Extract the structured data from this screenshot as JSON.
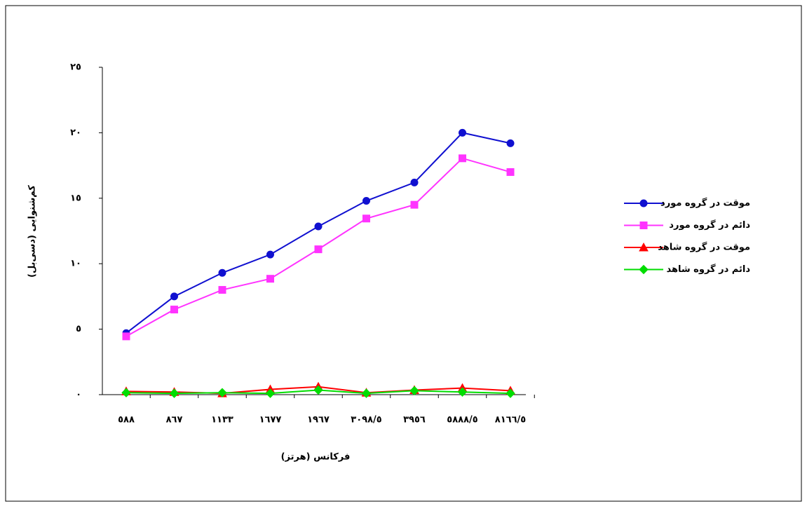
{
  "chart_data": {
    "type": "line",
    "x_label": "فرکانس (هرتز)",
    "y_label": "کم‌شنوایی (دسی‌بل)",
    "categories": [
      "٥٨٨",
      "٨٦٧",
      "١١٣٣",
      "١٦٧٧",
      "١٩٦٧",
      "٣٠٩٨/٥",
      "٣٩٥٦",
      "٥٨٨٨/٥",
      "٨١٦٦/٥"
    ],
    "series": [
      {
        "name": "موقت در گروه مورد",
        "color": "#1010d0",
        "marker": "circle",
        "values": [
          4.7,
          7.5,
          9.3,
          10.7,
          12.85,
          14.8,
          16.2,
          20.0,
          19.2
        ]
      },
      {
        "name": "دائم در گروه مورد",
        "color": "#ff33ff",
        "marker": "square",
        "values": [
          4.45,
          6.5,
          8.0,
          8.85,
          11.1,
          13.45,
          14.5,
          18.05,
          17.0
        ]
      },
      {
        "name": "موقت در گروه شاهد",
        "color": "#ff0000",
        "marker": "triangle",
        "values": [
          0.25,
          0.2,
          0.1,
          0.4,
          0.6,
          0.15,
          0.35,
          0.5,
          0.3
        ]
      },
      {
        "name": "دائم در گروه شاهد",
        "color": "#00dd00",
        "marker": "diamond",
        "values": [
          0.15,
          0.1,
          0.15,
          0.1,
          0.35,
          0.1,
          0.3,
          0.2,
          0.1
        ]
      }
    ],
    "ylim": [
      0,
      25
    ],
    "yticks": [
      {
        "value": 0,
        "label": "٠"
      },
      {
        "value": 5,
        "label": "٥"
      },
      {
        "value": 10,
        "label": "١٠"
      },
      {
        "value": 15,
        "label": "١٥"
      },
      {
        "value": 20,
        "label": "٢٠"
      },
      {
        "value": 25,
        "label": "٢٥"
      }
    ],
    "grid": false,
    "legend": "right"
  }
}
